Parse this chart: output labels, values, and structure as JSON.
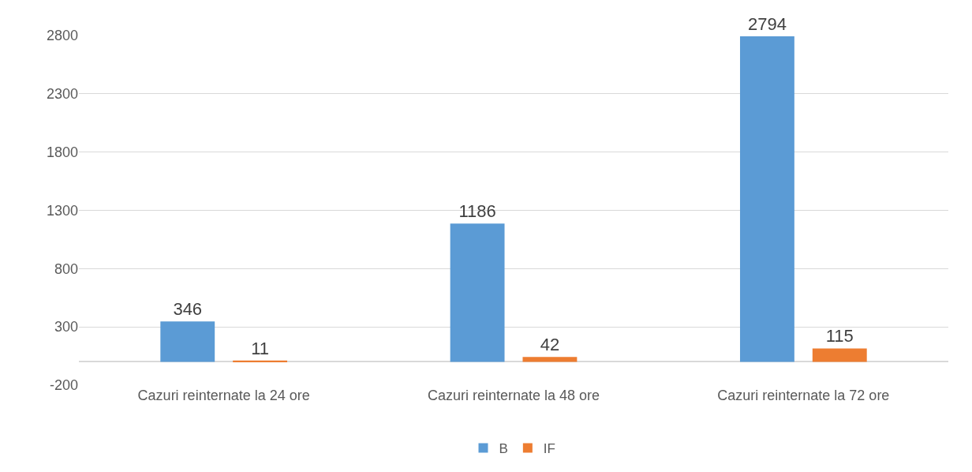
{
  "chart_data": {
    "type": "bar",
    "categories": [
      "Cazuri reinternate la 24 ore",
      "Cazuri reinternate la 48 ore",
      "Cazuri reinternate la 72 ore"
    ],
    "series": [
      {
        "name": "B",
        "color": "#5b9bd5",
        "values": [
          346,
          1186,
          2794
        ]
      },
      {
        "name": "IF",
        "color": "#ed7d31",
        "values": [
          11,
          42,
          115
        ]
      }
    ],
    "ylim": [
      -200,
      2800
    ],
    "yticks": [
      -200,
      300,
      800,
      1300,
      1800,
      2300,
      2800
    ],
    "grid": "y",
    "legend": "bottom",
    "data_labels": true
  }
}
